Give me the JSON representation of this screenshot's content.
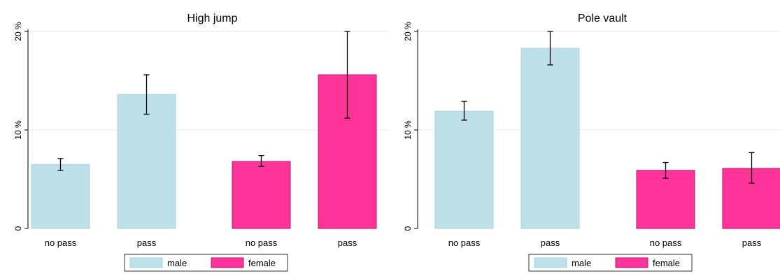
{
  "chart_data": [
    {
      "type": "bar",
      "title": "High jump",
      "categories": [
        "no pass",
        "pass",
        "no pass",
        "pass"
      ],
      "groups": [
        "male",
        "male",
        "female",
        "female"
      ],
      "values": [
        6.5,
        13.6,
        6.8,
        15.6
      ],
      "error_low": [
        5.9,
        11.6,
        6.3,
        11.2
      ],
      "error_high": [
        7.1,
        15.6,
        7.4,
        20.0
      ],
      "ylim": [
        0,
        20
      ],
      "yticks": [
        0,
        10,
        20
      ],
      "ytick_labels": [
        "0",
        "10 %",
        "20 %"
      ],
      "grid": true,
      "legend": {
        "placement": "bottom",
        "entries": [
          "male",
          "female"
        ]
      }
    },
    {
      "type": "bar",
      "title": "Pole vault",
      "categories": [
        "no pass",
        "pass",
        "no pass",
        "pass"
      ],
      "groups": [
        "male",
        "male",
        "female",
        "female"
      ],
      "values": [
        11.9,
        18.3,
        5.9,
        6.1
      ],
      "error_low": [
        11.0,
        16.6,
        5.1,
        4.6
      ],
      "error_high": [
        12.9,
        20.0,
        6.7,
        7.7
      ],
      "ylim": [
        0,
        20
      ],
      "yticks": [
        0,
        10,
        20
      ],
      "ytick_labels": [
        "0",
        "10 %",
        "20 %"
      ],
      "grid": true,
      "legend": {
        "placement": "bottom",
        "entries": [
          "male",
          "female"
        ]
      }
    }
  ],
  "colors": {
    "male_fill": "#bde0e9",
    "male_edge": "#a9d4e0",
    "female_fill": "#ff3399",
    "female_edge": "#b01a66",
    "grid": "#eaeaea",
    "axis": "#000000"
  }
}
